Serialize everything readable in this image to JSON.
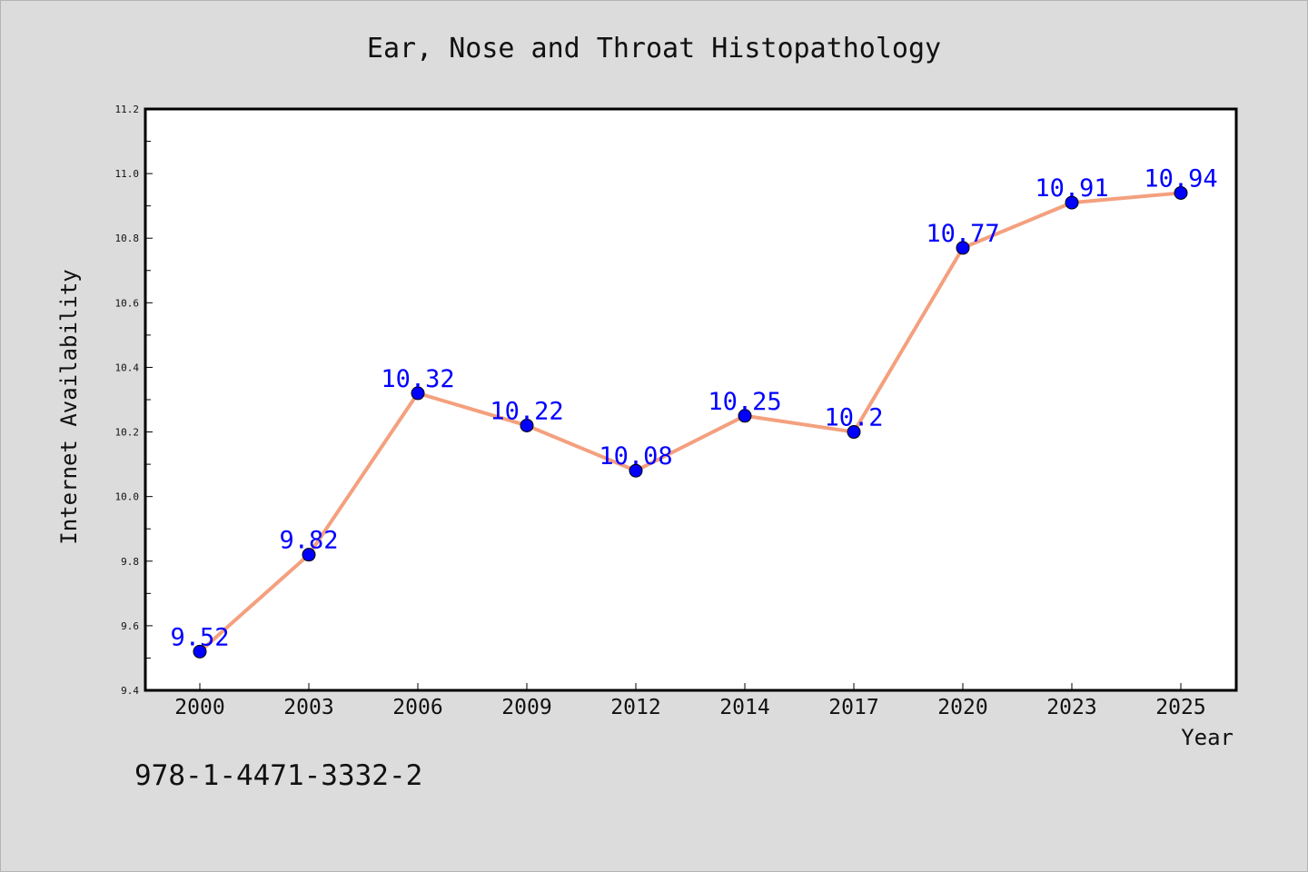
{
  "chart_data": {
    "type": "line",
    "title": "Ear, Nose and Throat Histopathology",
    "xlabel": "Year",
    "ylabel": "Internet Availability",
    "categories": [
      "2000",
      "2003",
      "2006",
      "2009",
      "2012",
      "2014",
      "2017",
      "2020",
      "2023",
      "2025"
    ],
    "series": [
      {
        "values": [
          9.52,
          9.82,
          10.32,
          10.22,
          10.08,
          10.25,
          10.2,
          10.77,
          10.91,
          10.94
        ],
        "data_labels": [
          "9.52",
          "9.82",
          "10.32",
          "10.22",
          "10.08",
          "10.25",
          "10.2",
          "10.77",
          "10.91",
          "10.94"
        ],
        "line_color": "#f4a07e",
        "marker_color": "#0000ff"
      }
    ],
    "ylim": [
      9.4,
      11.2
    ],
    "yticks": [
      9.4,
      9.6,
      9.8,
      10.0,
      10.2,
      10.4,
      10.6,
      10.8,
      11.0,
      11.2
    ],
    "ytick_labels": [
      "9.4",
      "9.6",
      "9.8",
      "10.0",
      "10.2",
      "10.4",
      "10.6",
      "10.8",
      "11.0",
      "11.2"
    ],
    "grid": false,
    "legend": "none"
  },
  "footnote": "978-1-4471-3332-2"
}
